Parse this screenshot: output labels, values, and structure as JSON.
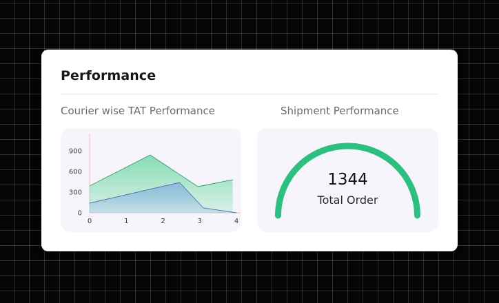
{
  "performance": {
    "title": "Performance",
    "tat_section_label": "Courier wise TAT Performance",
    "shipment_section_label": "Shipment Performance"
  },
  "chart_data": [
    {
      "type": "area",
      "title": "",
      "xlabel": "",
      "ylabel": "",
      "x": [
        0,
        1.65,
        2.95,
        3.9
      ],
      "xticks": [
        0,
        1,
        2,
        3,
        4
      ],
      "yticks": [
        0,
        300,
        600,
        900
      ],
      "xlim": [
        0,
        4
      ],
      "ylim": [
        0,
        1100
      ],
      "grid": false,
      "series": [
        {
          "values": [
            390,
            840,
            380,
            480
          ],
          "color": "#7fdcb0"
        },
        {
          "x": [
            0,
            2.45,
            3.1,
            4
          ],
          "values": [
            140,
            440,
            70,
            0
          ],
          "color": "#8fb8de"
        }
      ]
    },
    {
      "type": "gauge",
      "value": "1344",
      "label": "Total Order",
      "fraction": 1.0,
      "color": "#2dbf7f"
    }
  ]
}
